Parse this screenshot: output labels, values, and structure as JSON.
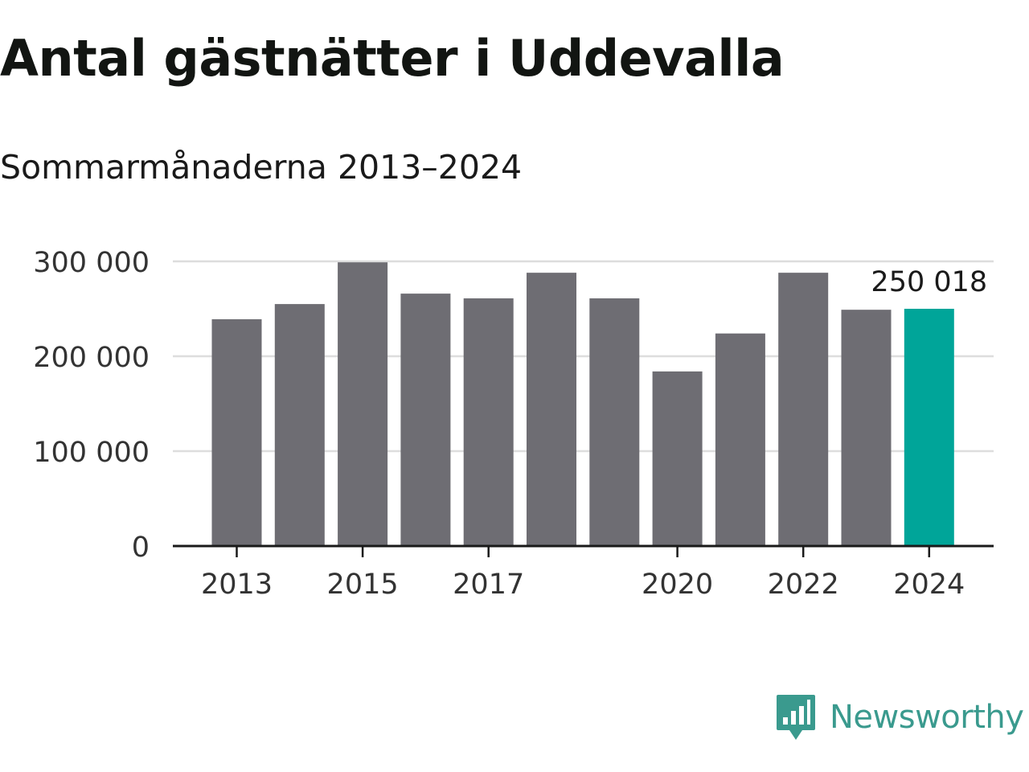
{
  "title": "Antal gästnätter i Uddevalla",
  "subtitle": "Sommarmånaderna 2013–2024",
  "brand": {
    "name": "Newsworthy",
    "icon": "newsworthy-logo-icon",
    "color": "#3a9a8e"
  },
  "colors": {
    "bar": "#6e6d73",
    "highlight": "#00a599",
    "grid": "#dddddd",
    "axis": "#1a1a1a"
  },
  "chart_data": {
    "type": "bar",
    "categories": [
      "2013",
      "2014",
      "2015",
      "2016",
      "2017",
      "2018",
      "2019",
      "2020",
      "2021",
      "2022",
      "2023",
      "2024"
    ],
    "values": [
      239000,
      255000,
      299000,
      266000,
      261000,
      288000,
      261000,
      184000,
      224000,
      288000,
      249000,
      250018
    ],
    "highlight_index": 11,
    "annotation": {
      "category": "2024",
      "label": "250 018"
    },
    "x_tick_labels": [
      "2013",
      "2015",
      "2017",
      "2020",
      "2022",
      "2024"
    ],
    "y_ticks": [
      0,
      100000,
      200000,
      300000
    ],
    "y_tick_labels": [
      "0",
      "100 000",
      "200 000",
      "300 000"
    ],
    "ylim": [
      0,
      300000
    ],
    "xlabel": "",
    "ylabel": "",
    "grid": true,
    "legend": "none"
  }
}
